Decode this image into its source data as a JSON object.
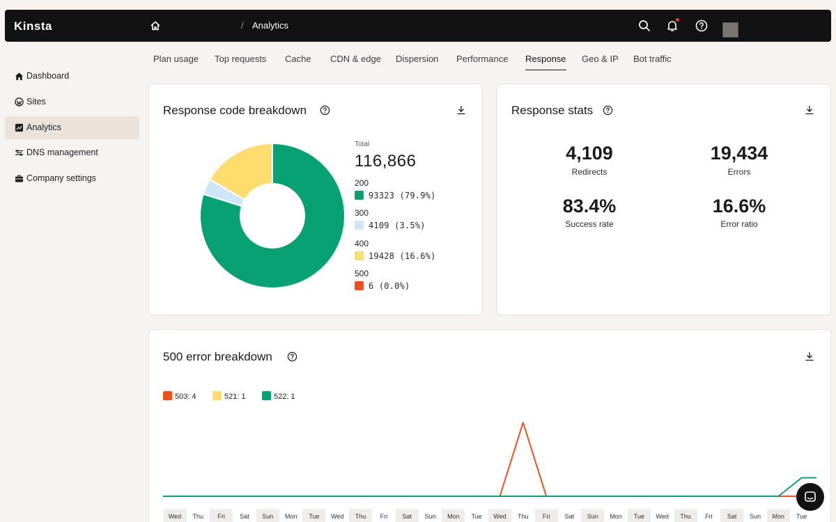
{
  "app": {
    "logo": "Kinsta",
    "breadcrumb_current": "Analytics"
  },
  "tabs": [
    {
      "label": "Plan usage"
    },
    {
      "label": "Top requests"
    },
    {
      "label": "Cache"
    },
    {
      "label": "CDN & edge"
    },
    {
      "label": "Dispersion"
    },
    {
      "label": "Performance"
    },
    {
      "label": "Response",
      "active": true
    },
    {
      "label": "Geo & IP"
    },
    {
      "label": "Bot traffic"
    }
  ],
  "sidebar": {
    "items": [
      {
        "label": "Dashboard",
        "icon": "home-icon"
      },
      {
        "label": "Sites",
        "icon": "wordpress-icon"
      },
      {
        "label": "Analytics",
        "icon": "analytics-icon",
        "active": true
      },
      {
        "label": "DNS management",
        "icon": "dns-icon"
      },
      {
        "label": "Company settings",
        "icon": "briefcase-icon"
      }
    ]
  },
  "response_breakdown": {
    "title": "Response code breakdown",
    "total_label": "Total",
    "total_value": "116,866",
    "legend": [
      {
        "code": "200",
        "text": "93323  (79.9%)",
        "color": "#08a174"
      },
      {
        "code": "300",
        "text": "4109  (3.5%)",
        "color": "#cfe5fa"
      },
      {
        "code": "400",
        "text": "19428  (16.6%)",
        "color": "#ffdc6e"
      },
      {
        "code": "500",
        "text": "6  (0.0%)",
        "color": "#f24e1e"
      }
    ]
  },
  "response_stats": {
    "title": "Response stats",
    "stats": [
      {
        "value": "4,109",
        "label": "Redirects"
      },
      {
        "value": "19,434",
        "label": "Errors"
      },
      {
        "value": "83.4%",
        "label": "Success rate"
      },
      {
        "value": "16.6%",
        "label": "Error ratio"
      }
    ]
  },
  "error_breakdown": {
    "title": "500 error breakdown",
    "legend": [
      {
        "label": "503:",
        "count": "4",
        "color": "#f24e1e"
      },
      {
        "label": "521:",
        "count": "1",
        "color": "#ffdc6e"
      },
      {
        "label": "522:",
        "count": "1",
        "color": "#08a174"
      }
    ]
  },
  "chart_data": [
    {
      "type": "pie",
      "title": "Response code breakdown",
      "categories": [
        "200",
        "300",
        "400",
        "500"
      ],
      "values": [
        93323,
        4109,
        19428,
        6
      ],
      "colors": [
        "#08a174",
        "#cfe5fa",
        "#ffdc6e",
        "#f24e1e"
      ],
      "donut": true
    },
    {
      "type": "line",
      "title": "500 error breakdown",
      "x": [
        "Wed",
        "Thu",
        "Fri",
        "Sat",
        "Sun",
        "Mon",
        "Tue",
        "Wed",
        "Thu",
        "Fri",
        "Sat",
        "Sun",
        "Mon",
        "Tue",
        "Wed",
        "Thu",
        "Fri",
        "Sat",
        "Sun",
        "Mon",
        "Tue",
        "Wed",
        "Thu",
        "Fri",
        "Sat",
        "Sun",
        "Mon",
        "Tue"
      ],
      "series": [
        {
          "name": "503",
          "color": "#f24e1e",
          "values": [
            0,
            0,
            0,
            0,
            0,
            0,
            0,
            0,
            0,
            0,
            0,
            0,
            0,
            0,
            0,
            4,
            0,
            0,
            0,
            0,
            0,
            0,
            0,
            0,
            0,
            0,
            0,
            0
          ]
        },
        {
          "name": "521",
          "color": "#ffdc6e",
          "values": [
            0,
            0,
            0,
            0,
            0,
            0,
            0,
            0,
            0,
            0,
            0,
            0,
            0,
            0,
            0,
            0,
            0,
            0,
            0,
            0,
            0,
            0,
            0,
            0,
            0,
            0,
            0,
            1
          ]
        },
        {
          "name": "522",
          "color": "#08a174",
          "values": [
            0,
            0,
            0,
            0,
            0,
            0,
            0,
            0,
            0,
            0,
            0,
            0,
            0,
            0,
            0,
            0,
            0,
            0,
            0,
            0,
            0,
            0,
            0,
            0,
            0,
            0,
            0,
            1
          ]
        }
      ],
      "shaded_days": [
        0,
        2,
        4,
        6,
        8,
        10,
        12,
        14,
        16,
        18,
        20,
        22,
        24,
        26
      ]
    }
  ]
}
